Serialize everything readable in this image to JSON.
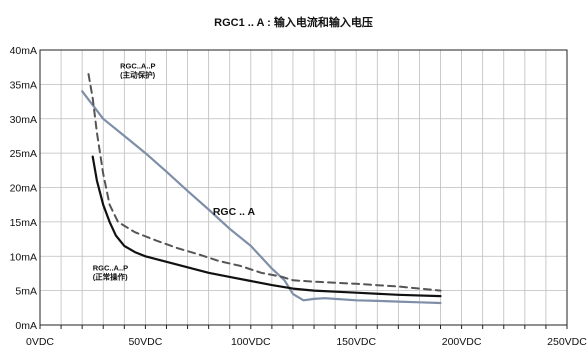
{
  "chart_data": {
    "type": "line",
    "title": "RGC1 .. A : 输入电流和输入电压",
    "xlim": [
      0,
      250
    ],
    "ylim": [
      0,
      40
    ],
    "x_ticks": [
      "0VDC",
      "50VDC",
      "100VDC",
      "150VDC",
      "200VDC",
      "250VDC"
    ],
    "y_ticks": [
      "0mA",
      "5mA",
      "10mA",
      "15mA",
      "20mA",
      "25mA",
      "30mA",
      "35mA",
      "40mA"
    ],
    "grid": true,
    "series": [
      {
        "name": "RGC .. A",
        "color": "#7f8fa8",
        "style": "solid",
        "x": [
          20,
          30,
          40,
          50,
          60,
          70,
          80,
          90,
          100,
          110,
          116,
          120,
          125,
          130,
          135,
          140,
          150,
          160,
          170,
          180,
          190
        ],
        "y": [
          34,
          30,
          27.5,
          25,
          22.3,
          19.5,
          16.8,
          14,
          11.5,
          8.2,
          6.5,
          4.5,
          3.6,
          3.8,
          3.9,
          3.8,
          3.6,
          3.5,
          3.4,
          3.3,
          3.2
        ]
      },
      {
        "name": "RGC..A..P (主动保护)",
        "color": "#555555",
        "style": "dashed",
        "x": [
          23,
          25,
          27,
          30,
          33,
          37,
          45,
          55,
          65,
          75,
          85,
          95,
          105,
          115,
          120,
          130,
          150,
          170,
          190
        ],
        "y": [
          36.5,
          33,
          28,
          22,
          17.5,
          15,
          13.5,
          12.3,
          11.2,
          10.3,
          9.3,
          8.6,
          7.6,
          7,
          6.5,
          6.3,
          6,
          5.6,
          5
        ]
      },
      {
        "name": "RGC..A..P (正常操作)",
        "color": "#111111",
        "style": "solid",
        "x": [
          25,
          27,
          30,
          33,
          36,
          40,
          45,
          50,
          60,
          70,
          80,
          90,
          100,
          110,
          120,
          130,
          150,
          170,
          190
        ],
        "y": [
          24.5,
          21,
          17.5,
          15,
          13,
          11.5,
          10.6,
          10,
          9.2,
          8.4,
          7.6,
          7,
          6.4,
          5.8,
          5.3,
          5,
          4.7,
          4.4,
          4.2
        ]
      }
    ],
    "annotations": [
      {
        "text": "RGC..A..P",
        "x": 38,
        "y": 37.3
      },
      {
        "text": "(主动保护)",
        "x": 38,
        "y": 36
      },
      {
        "text": "RGC .. A",
        "x": 82,
        "y": 16
      },
      {
        "text": "RGC..A..P",
        "x": 25,
        "y": 7.9
      },
      {
        "text": "(正常操作)",
        "x": 25,
        "y": 6.6
      }
    ]
  }
}
